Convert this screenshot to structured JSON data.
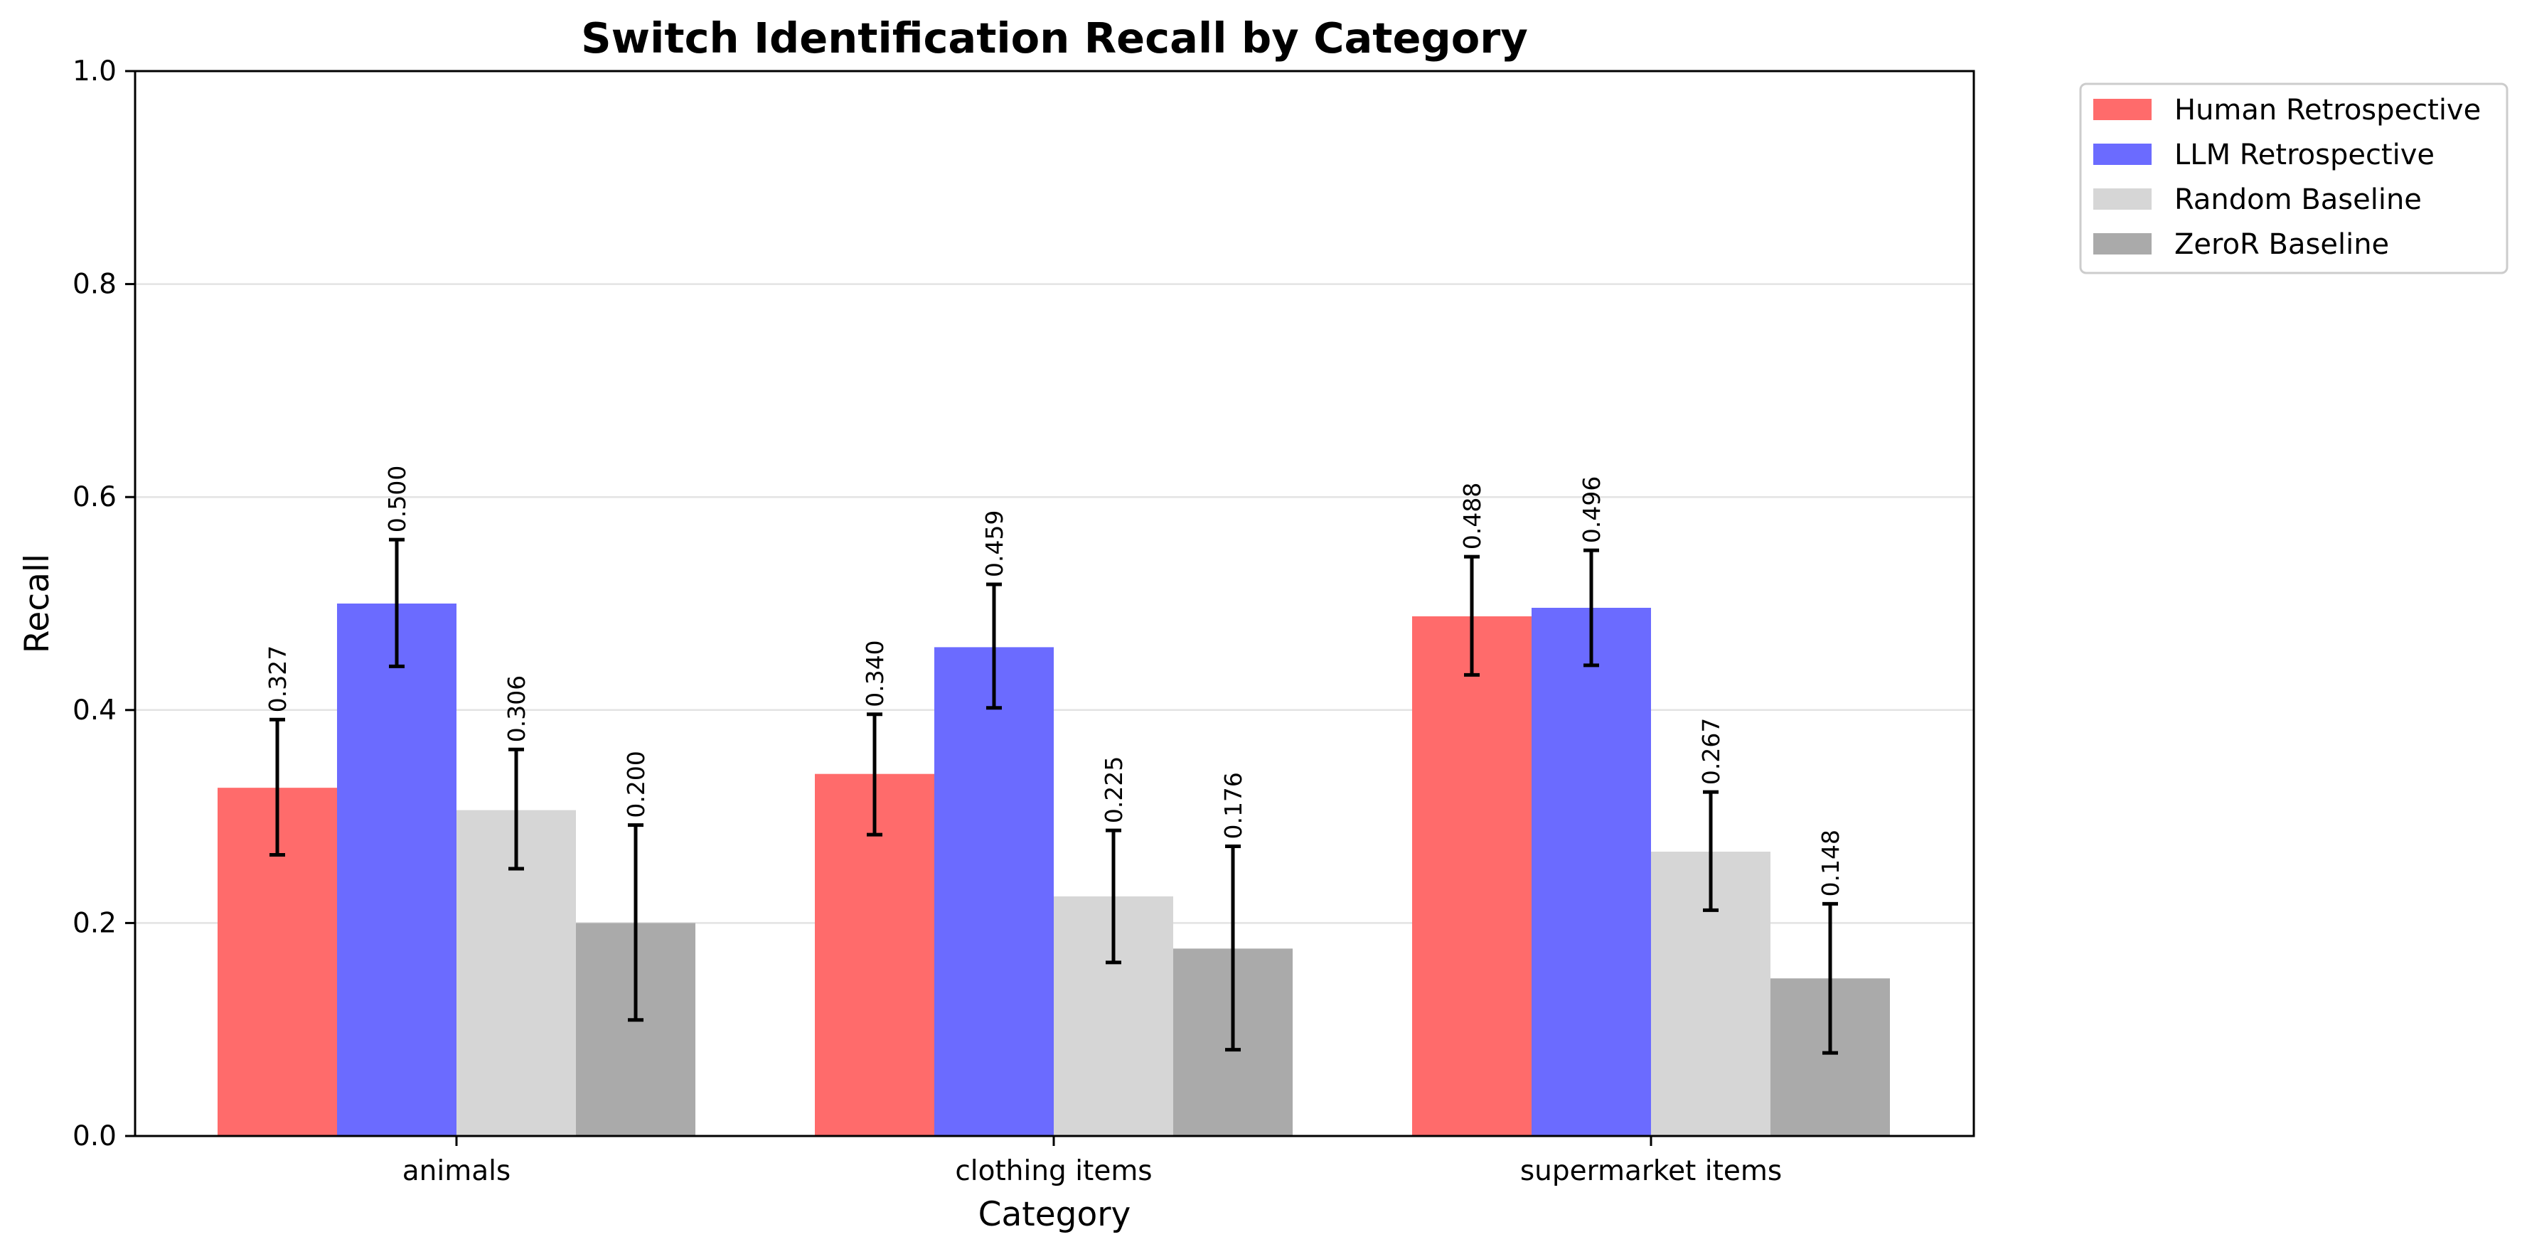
{
  "chart_data": {
    "type": "bar",
    "title": "Switch Identification Recall by Category",
    "xlabel": "Category",
    "ylabel": "Recall",
    "ylim": [
      0,
      1.0
    ],
    "yticks": [
      "0.0",
      "0.2",
      "0.4",
      "0.6",
      "0.8",
      "1.0"
    ],
    "grid": "horizontal",
    "legend_position": "outside-top-right",
    "categories": [
      "animals",
      "clothing items",
      "supermarket items"
    ],
    "series": [
      {
        "name": "Human Retrospective",
        "color": "#ff6b6b",
        "values": [
          0.327,
          0.34,
          0.488
        ],
        "labels": [
          "0.327",
          "0.340",
          "0.488"
        ],
        "err_low": [
          0.264,
          0.283,
          0.433
        ],
        "err_high": [
          0.391,
          0.396,
          0.544
        ]
      },
      {
        "name": "LLM Retrospective",
        "color": "#6b6bff",
        "values": [
          0.5,
          0.459,
          0.496
        ],
        "labels": [
          "0.500",
          "0.459",
          "0.496"
        ],
        "err_low": [
          0.441,
          0.402,
          0.442
        ],
        "err_high": [
          0.56,
          0.518,
          0.55
        ]
      },
      {
        "name": "Random Baseline",
        "color": "#d6d6d6",
        "values": [
          0.306,
          0.225,
          0.267
        ],
        "labels": [
          "0.306",
          "0.225",
          "0.267"
        ],
        "err_low": [
          0.251,
          0.163,
          0.212
        ],
        "err_high": [
          0.363,
          0.287,
          0.323
        ]
      },
      {
        "name": "ZeroR Baseline",
        "color": "#aaaaaa",
        "values": [
          0.2,
          0.176,
          0.148
        ],
        "labels": [
          "0.200",
          "0.176",
          "0.148"
        ],
        "err_low": [
          0.109,
          0.081,
          0.078
        ],
        "err_high": [
          0.292,
          0.272,
          0.218
        ]
      }
    ]
  }
}
